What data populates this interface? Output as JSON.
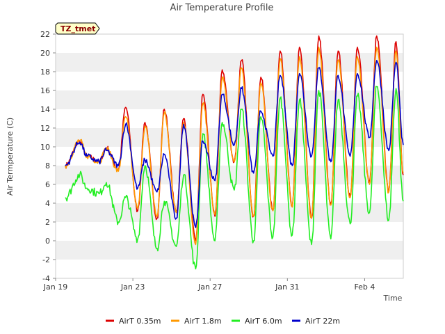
{
  "chart_data": {
    "type": "line",
    "title": "Air Temperature Profile",
    "xlabel": "Time",
    "ylabel": "Air Termperature (C)",
    "annotation": "TZ_tmet",
    "ylim": [
      -4,
      22
    ],
    "yticks": [
      -4,
      -2,
      0,
      2,
      4,
      6,
      8,
      10,
      12,
      14,
      16,
      18,
      20,
      22
    ],
    "xlim": [
      "2022-01-19",
      "2022-02-06"
    ],
    "xticks": [
      {
        "date": "2022-01-19",
        "label": "Jan 19"
      },
      {
        "date": "2022-01-23",
        "label": "Jan 23"
      },
      {
        "date": "2022-01-27",
        "label": "Jan 27"
      },
      {
        "date": "2022-01-31",
        "label": "Jan 31"
      },
      {
        "date": "2022-02-04",
        "label": "Feb 4"
      }
    ],
    "grid": "horizontal alternating bands",
    "legend_position": "bottom",
    "daily_extremes_note": "each series sampled at daily minima (~06:00) and maxima (~15:00)",
    "series": [
      {
        "name": "AirT 0.35m",
        "color": "#dd0000",
        "points": [
          [
            "2022-01-19 12:00",
            8.0
          ],
          [
            "2022-01-20 06:00",
            10.6
          ],
          [
            "2022-01-20 15:00",
            9.0
          ],
          [
            "2022-01-21 06:00",
            8.4
          ],
          [
            "2022-01-21 15:00",
            9.9
          ],
          [
            "2022-01-22 06:00",
            7.6
          ],
          [
            "2022-01-22 15:00",
            14.2
          ],
          [
            "2022-01-23 06:00",
            3.2
          ],
          [
            "2022-01-23 15:00",
            12.6
          ],
          [
            "2022-01-24 06:00",
            2.4
          ],
          [
            "2022-01-24 15:00",
            14.0
          ],
          [
            "2022-01-25 06:00",
            3.0
          ],
          [
            "2022-01-25 15:00",
            13.0
          ],
          [
            "2022-01-26 06:00",
            0.0
          ],
          [
            "2022-01-26 15:00",
            15.6
          ],
          [
            "2022-01-27 06:00",
            2.6
          ],
          [
            "2022-01-27 15:00",
            18.2
          ],
          [
            "2022-01-28 06:00",
            8.4
          ],
          [
            "2022-01-28 15:00",
            19.2
          ],
          [
            "2022-01-29 06:00",
            2.6
          ],
          [
            "2022-01-29 15:00",
            17.4
          ],
          [
            "2022-01-30 06:00",
            3.2
          ],
          [
            "2022-01-30 15:00",
            20.2
          ],
          [
            "2022-01-31 06:00",
            3.6
          ],
          [
            "2022-01-31 15:00",
            20.6
          ],
          [
            "2022-02-01 06:00",
            2.4
          ],
          [
            "2022-02-01 15:00",
            21.8
          ],
          [
            "2022-02-02 06:00",
            3.8
          ],
          [
            "2022-02-02 15:00",
            20.2
          ],
          [
            "2022-02-03 06:00",
            4.6
          ],
          [
            "2022-02-03 15:00",
            20.6
          ],
          [
            "2022-02-04 06:00",
            6.2
          ],
          [
            "2022-02-04 15:00",
            21.8
          ],
          [
            "2022-02-05 06:00",
            5.2
          ],
          [
            "2022-02-05 15:00",
            21.2
          ],
          [
            "2022-02-06 00:00",
            7.0
          ]
        ]
      },
      {
        "name": "AirT 1.8m",
        "color": "#ff9900",
        "points": [
          [
            "2022-01-19 12:00",
            8.0
          ],
          [
            "2022-01-20 06:00",
            10.7
          ],
          [
            "2022-01-20 15:00",
            9.0
          ],
          [
            "2022-01-21 06:00",
            8.4
          ],
          [
            "2022-01-21 15:00",
            9.8
          ],
          [
            "2022-01-22 06:00",
            7.4
          ],
          [
            "2022-01-22 15:00",
            13.2
          ],
          [
            "2022-01-23 06:00",
            3.4
          ],
          [
            "2022-01-23 15:00",
            12.2
          ],
          [
            "2022-01-24 06:00",
            2.6
          ],
          [
            "2022-01-24 15:00",
            13.6
          ],
          [
            "2022-01-25 06:00",
            3.0
          ],
          [
            "2022-01-25 15:00",
            12.6
          ],
          [
            "2022-01-26 06:00",
            -0.4
          ],
          [
            "2022-01-26 15:00",
            14.6
          ],
          [
            "2022-01-27 06:00",
            2.8
          ],
          [
            "2022-01-27 15:00",
            17.4
          ],
          [
            "2022-01-28 06:00",
            8.4
          ],
          [
            "2022-01-28 15:00",
            18.4
          ],
          [
            "2022-01-29 06:00",
            2.6
          ],
          [
            "2022-01-29 15:00",
            16.8
          ],
          [
            "2022-01-30 06:00",
            3.2
          ],
          [
            "2022-01-30 15:00",
            19.4
          ],
          [
            "2022-01-31 06:00",
            3.6
          ],
          [
            "2022-01-31 15:00",
            19.6
          ],
          [
            "2022-02-01 06:00",
            2.4
          ],
          [
            "2022-02-01 15:00",
            20.6
          ],
          [
            "2022-02-02 06:00",
            3.8
          ],
          [
            "2022-02-02 15:00",
            19.2
          ],
          [
            "2022-02-03 06:00",
            4.6
          ],
          [
            "2022-02-03 15:00",
            19.6
          ],
          [
            "2022-02-04 06:00",
            6.0
          ],
          [
            "2022-02-04 15:00",
            20.6
          ],
          [
            "2022-02-05 06:00",
            5.2
          ],
          [
            "2022-02-05 15:00",
            20.2
          ],
          [
            "2022-02-06 00:00",
            7.2
          ]
        ]
      },
      {
        "name": "AirT 6.0m",
        "color": "#22ee22",
        "points": [
          [
            "2022-01-19 12:00",
            4.6
          ],
          [
            "2022-01-20 06:00",
            7.0
          ],
          [
            "2022-01-20 15:00",
            5.6
          ],
          [
            "2022-01-21 06:00",
            5.0
          ],
          [
            "2022-01-21 15:00",
            6.2
          ],
          [
            "2022-01-22 06:00",
            2.0
          ],
          [
            "2022-01-22 15:00",
            4.6
          ],
          [
            "2022-01-23 06:00",
            0.2
          ],
          [
            "2022-01-23 15:00",
            8.0
          ],
          [
            "2022-01-24 06:00",
            -0.8
          ],
          [
            "2022-01-24 15:00",
            4.2
          ],
          [
            "2022-01-25 06:00",
            -0.6
          ],
          [
            "2022-01-25 15:00",
            7.0
          ],
          [
            "2022-01-26 06:00",
            -3.0
          ],
          [
            "2022-01-26 15:00",
            11.4
          ],
          [
            "2022-01-27 06:00",
            0.0
          ],
          [
            "2022-01-27 15:00",
            12.6
          ],
          [
            "2022-01-28 06:00",
            5.4
          ],
          [
            "2022-01-28 15:00",
            14.0
          ],
          [
            "2022-01-29 06:00",
            0.0
          ],
          [
            "2022-01-29 15:00",
            13.2
          ],
          [
            "2022-01-30 06:00",
            0.4
          ],
          [
            "2022-01-30 15:00",
            15.2
          ],
          [
            "2022-01-31 06:00",
            0.6
          ],
          [
            "2022-01-31 15:00",
            15.0
          ],
          [
            "2022-02-01 06:00",
            -0.4
          ],
          [
            "2022-02-01 15:00",
            16.0
          ],
          [
            "2022-02-02 06:00",
            0.2
          ],
          [
            "2022-02-02 15:00",
            15.0
          ],
          [
            "2022-02-03 06:00",
            1.8
          ],
          [
            "2022-02-03 15:00",
            15.4
          ],
          [
            "2022-02-04 06:00",
            3.0
          ],
          [
            "2022-02-04 15:00",
            16.4
          ],
          [
            "2022-02-05 06:00",
            2.2
          ],
          [
            "2022-02-05 15:00",
            16.2
          ],
          [
            "2022-02-06 00:00",
            4.2
          ]
        ]
      },
      {
        "name": "AirT 22m",
        "color": "#0000cc",
        "points": [
          [
            "2022-01-19 12:00",
            8.0
          ],
          [
            "2022-01-20 06:00",
            10.5
          ],
          [
            "2022-01-20 15:00",
            9.0
          ],
          [
            "2022-01-21 06:00",
            8.4
          ],
          [
            "2022-01-21 15:00",
            9.6
          ],
          [
            "2022-01-22 06:00",
            8.0
          ],
          [
            "2022-01-22 15:00",
            12.4
          ],
          [
            "2022-01-23 06:00",
            5.6
          ],
          [
            "2022-01-23 15:00",
            8.6
          ],
          [
            "2022-01-24 06:00",
            5.2
          ],
          [
            "2022-01-24 15:00",
            9.2
          ],
          [
            "2022-01-25 06:00",
            2.4
          ],
          [
            "2022-01-25 15:00",
            12.4
          ],
          [
            "2022-01-26 06:00",
            1.4
          ],
          [
            "2022-01-26 15:00",
            10.6
          ],
          [
            "2022-01-27 06:00",
            6.4
          ],
          [
            "2022-01-27 15:00",
            15.6
          ],
          [
            "2022-01-28 06:00",
            10.2
          ],
          [
            "2022-01-28 15:00",
            16.2
          ],
          [
            "2022-01-29 06:00",
            7.2
          ],
          [
            "2022-01-29 15:00",
            13.8
          ],
          [
            "2022-01-30 06:00",
            9.0
          ],
          [
            "2022-01-30 15:00",
            17.6
          ],
          [
            "2022-01-31 06:00",
            8.0
          ],
          [
            "2022-01-31 15:00",
            17.8
          ],
          [
            "2022-02-01 06:00",
            9.0
          ],
          [
            "2022-02-01 15:00",
            18.4
          ],
          [
            "2022-02-02 06:00",
            8.4
          ],
          [
            "2022-02-02 15:00",
            17.6
          ],
          [
            "2022-02-03 06:00",
            9.0
          ],
          [
            "2022-02-03 15:00",
            17.8
          ],
          [
            "2022-02-04 06:00",
            11.0
          ],
          [
            "2022-02-04 15:00",
            19.2
          ],
          [
            "2022-02-05 06:00",
            9.6
          ],
          [
            "2022-02-05 15:00",
            19.0
          ],
          [
            "2022-02-06 00:00",
            10.2
          ]
        ]
      }
    ]
  }
}
